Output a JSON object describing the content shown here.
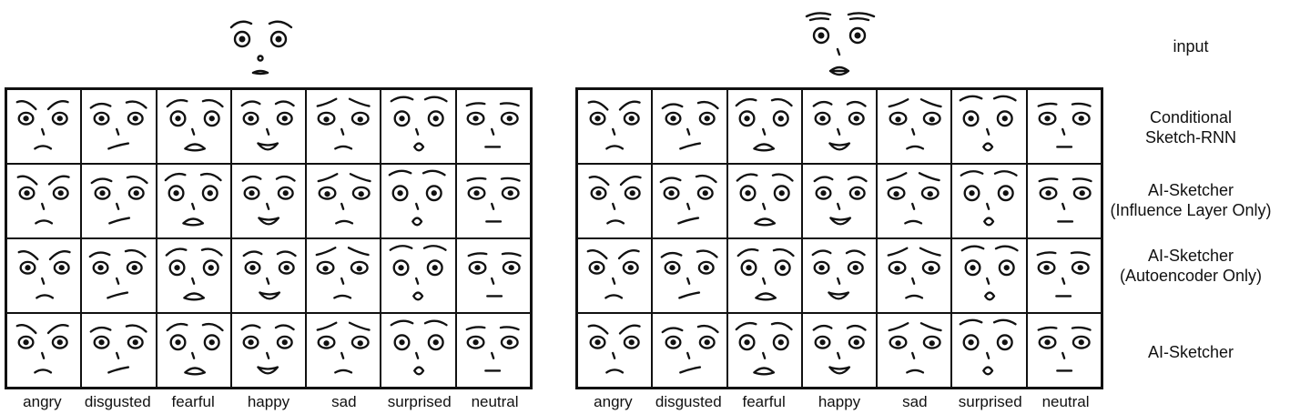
{
  "labels": {
    "input": "input",
    "rows": [
      [
        "Conditional",
        "Sketch-RNN"
      ],
      [
        "AI-Sketcher",
        "(Influence Layer Only)"
      ],
      [
        "AI-Sketcher",
        "(Autoencoder Only)"
      ],
      [
        "AI-Sketcher",
        ""
      ]
    ],
    "emotions": [
      "angry",
      "disgusted",
      "fearful",
      "happy",
      "sad",
      "surprised",
      "neutral"
    ]
  },
  "panels": [
    {
      "id": "left",
      "emotion_labels": [
        "angry",
        "disgusted",
        "fearful",
        "happy",
        "sad",
        "surprised",
        "neutral"
      ]
    },
    {
      "id": "right",
      "emotion_labels": [
        "angry",
        "disgusted",
        "fearful",
        "happy",
        "sad",
        "surprised",
        "neutral"
      ]
    }
  ]
}
